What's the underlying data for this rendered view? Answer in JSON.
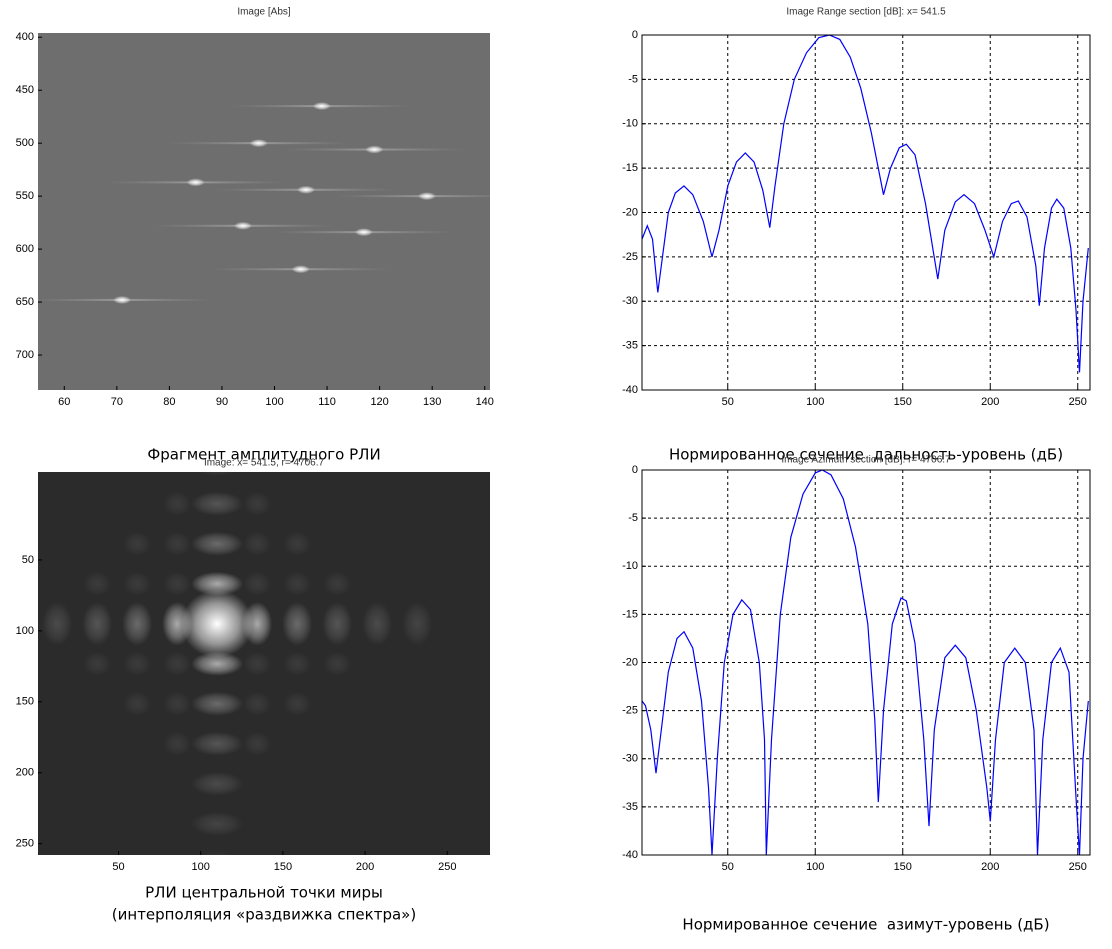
{
  "chart_data": [
    {
      "type": "image",
      "title": "Image [Abs]",
      "caption": [
        "Фрагмент амплитудного РЛИ"
      ],
      "background": "#6e6e6e",
      "x": [
        109,
        97,
        119,
        85,
        106,
        129,
        94,
        117,
        105,
        71
      ],
      "y": [
        465,
        500,
        506,
        537,
        544,
        550,
        578,
        584,
        619,
        648
      ],
      "xlim": [
        55,
        141
      ],
      "ylim": [
        396,
        733
      ],
      "xticks": [
        60,
        70,
        80,
        90,
        100,
        110,
        120,
        130,
        140
      ],
      "yticks": [
        400,
        450,
        500,
        550,
        600,
        650,
        700
      ]
    },
    {
      "type": "line",
      "title": "Image Range section [dB]: x= 541.5",
      "caption": [
        "Нормированное сечение  дальность-уровень (дБ)"
      ],
      "color": "#0000ff",
      "grid": true,
      "x": [
        1,
        4,
        7,
        10,
        12,
        16,
        20,
        25,
        30,
        36,
        41,
        45,
        50,
        55,
        60,
        65,
        70,
        74,
        77,
        82,
        88,
        95,
        102,
        108,
        114,
        120,
        126,
        132,
        139,
        143,
        148,
        152,
        157,
        163,
        170,
        174,
        180,
        185,
        191,
        197,
        202,
        207,
        212,
        216,
        221,
        226,
        228,
        231,
        235,
        238,
        242,
        246,
        249,
        251,
        253,
        256
      ],
      "values": [
        -23,
        -21.5,
        -23,
        -29,
        -26,
        -20,
        -17.8,
        -17,
        -18,
        -21,
        -25,
        -22,
        -17,
        -14.3,
        -13.3,
        -14.3,
        -17.5,
        -21.7,
        -17,
        -10,
        -5,
        -2,
        -0.3,
        0,
        -0.5,
        -2.5,
        -6,
        -11,
        -18,
        -15,
        -12.7,
        -12.3,
        -13.5,
        -19,
        -27.5,
        -22,
        -18.8,
        -18,
        -19,
        -22,
        -25,
        -21,
        -19,
        -18.7,
        -20.5,
        -26,
        -30.5,
        -24,
        -19.5,
        -18.5,
        -19.5,
        -24,
        -31,
        -38,
        -30,
        -24
      ],
      "xlim": [
        1,
        257
      ],
      "ylim": [
        -40,
        0
      ],
      "xticks": [
        50,
        100,
        150,
        200,
        250
      ],
      "yticks": [
        -40,
        -35,
        -30,
        -25,
        -20,
        -15,
        -10,
        -5,
        0
      ]
    },
    {
      "type": "image",
      "title": "Image: x= 541.5, r= 4706.7",
      "caption": [
        "РЛИ центральной точки миры",
        "(интерполяция «раздвижка спектра»)"
      ],
      "background": "#2b2b2b",
      "x": [
        110
      ],
      "y": [
        95
      ],
      "xlim": [
        1,
        276
      ],
      "ylim": [
        -12,
        258
      ],
      "xticks": [
        50,
        100,
        150,
        200,
        250
      ],
      "yticks": [
        50,
        100,
        150,
        200,
        250
      ]
    },
    {
      "type": "line",
      "title": "Image Azimuth section [dB]: r= 4706.7",
      "caption": [
        "Нормированное сечение  азимут-уровень (дБ)"
      ],
      "color": "#0000ff",
      "grid": true,
      "x": [
        1,
        3,
        6,
        9,
        12,
        16,
        21,
        25,
        30,
        35,
        39,
        41,
        44,
        48,
        53,
        58,
        63,
        68,
        71,
        72,
        75,
        80,
        86,
        93,
        100,
        104,
        109,
        116,
        123,
        130,
        134,
        136,
        139,
        144,
        149,
        152,
        157,
        162,
        165,
        168,
        174,
        180,
        186,
        192,
        198,
        200,
        203,
        208,
        214,
        220,
        225,
        227,
        230,
        235,
        240,
        245,
        249,
        251,
        253,
        256
      ],
      "values": [
        -24,
        -24.5,
        -27,
        -31.5,
        -27,
        -21,
        -17.5,
        -16.8,
        -18.5,
        -24,
        -33,
        -40,
        -30,
        -20,
        -15,
        -13.5,
        -14.5,
        -20,
        -28,
        -40,
        -28,
        -15,
        -7,
        -2.5,
        -0.3,
        0,
        -0.5,
        -3,
        -8,
        -16,
        -26,
        -34.5,
        -25,
        -16,
        -13.3,
        -13.6,
        -18,
        -28,
        -37,
        -27,
        -19.5,
        -18.2,
        -19.5,
        -25,
        -33,
        -36.5,
        -28,
        -20,
        -18.5,
        -20,
        -27,
        -40,
        -28,
        -20,
        -18.5,
        -21,
        -34,
        -40,
        -30,
        -24
      ],
      "xlim": [
        1,
        257
      ],
      "ylim": [
        -40,
        0
      ],
      "xticks": [
        50,
        100,
        150,
        200,
        250
      ],
      "yticks": [
        -40,
        -35,
        -30,
        -25,
        -20,
        -15,
        -10,
        -5,
        0
      ]
    }
  ]
}
